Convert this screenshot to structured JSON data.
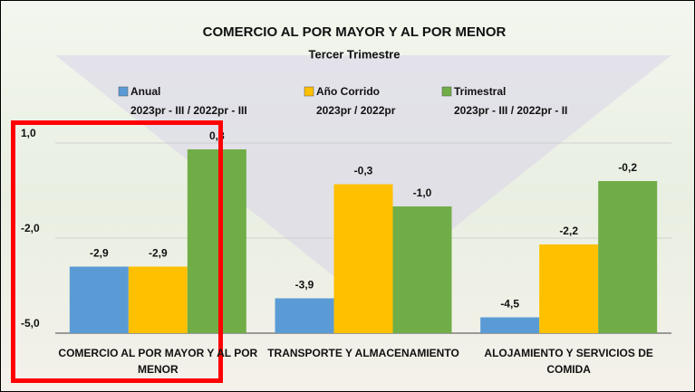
{
  "chart_data": {
    "type": "bar",
    "title": "COMERCIO AL POR MAYOR Y AL POR MENOR",
    "subtitle": "Tercer Trimestre",
    "categories": [
      "COMERCIO AL POR MAYOR Y AL POR MENOR",
      "TRANSPORTE Y ALMACENAMIENTO",
      "ALOJAMIENTO Y SERVICIOS DE COMIDA"
    ],
    "series": [
      {
        "name": "Anual",
        "period": "2023pr - III / 2022pr - III",
        "color": "#5b9bd5",
        "values": [
          -2.9,
          -3.9,
          -4.5
        ],
        "value_labels": [
          "-2,9",
          "-3,9",
          "-4,5"
        ]
      },
      {
        "name": "Año Corrido",
        "period": "2023pr / 2022pr",
        "color": "#ffc000",
        "values": [
          -2.9,
          -0.3,
          -2.2
        ],
        "value_labels": [
          "-2,9",
          "-0,3",
          "-2,2"
        ]
      },
      {
        "name": "Trimestral",
        "period": "2023pr - III / 2022pr - II",
        "color": "#70ad47",
        "values": [
          0.8,
          -1.0,
          -0.2
        ],
        "value_labels": [
          "0,8",
          "-1,0",
          "-0,2"
        ]
      }
    ],
    "ylim": [
      -5,
      1.8
    ],
    "yticks": [
      {
        "value": -5,
        "label": "-5,0"
      },
      {
        "value": -2,
        "label": "-2,0"
      },
      {
        "value": 1,
        "label": "1,0"
      }
    ],
    "grid": true
  }
}
